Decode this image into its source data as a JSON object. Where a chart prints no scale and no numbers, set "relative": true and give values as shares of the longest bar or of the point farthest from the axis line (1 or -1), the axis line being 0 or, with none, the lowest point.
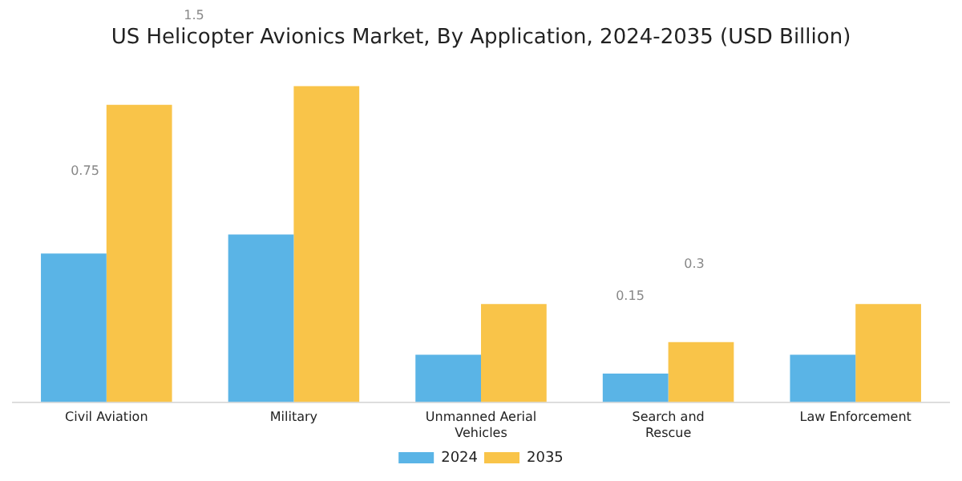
{
  "chart_data": {
    "type": "bar",
    "title": "US Helicopter Avionics Market, By Application, 2024-2035 (USD Billion)",
    "relative": true,
    "categories": [
      "Civil Aviation",
      "Military",
      "Unmanned Aerial Vehicles",
      "Search and Rescue",
      "Law Enforcement"
    ],
    "series": [
      {
        "name": "2024",
        "color": "#5ab4e6",
        "values": [
          0.47,
          0.53,
          0.15,
          0.09,
          0.15
        ]
      },
      {
        "name": "2035",
        "color": "#f9c449",
        "values": [
          0.94,
          1,
          0.31,
          0.19,
          0.31
        ]
      }
    ],
    "annotations": [
      "1.5",
      "0.75",
      "0.15",
      "0.3"
    ],
    "grid": false,
    "legend": "bottom"
  }
}
